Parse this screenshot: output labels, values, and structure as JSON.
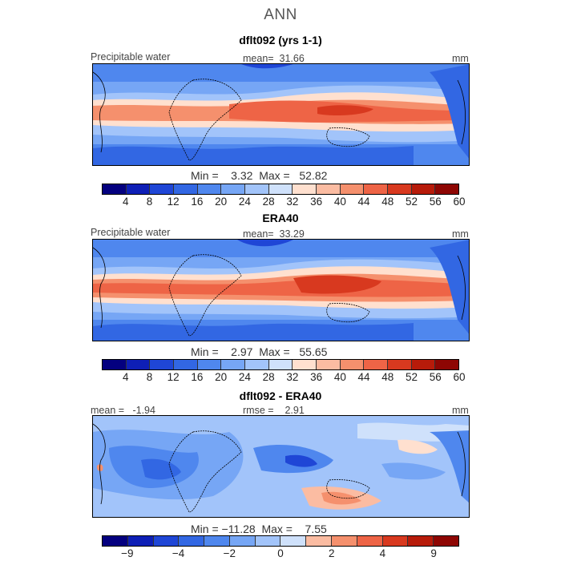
{
  "figure": {
    "suptitle": "ANN"
  },
  "chart_data": [
    {
      "type": "heatmap",
      "title": "dflt092 (yrs 1-1)",
      "left_label": "Precipitable water",
      "center_label": "mean=  31.66",
      "units": "mm",
      "min_max_text": "Min =    3.32  Max =   52.82",
      "min": 3.32,
      "max": 52.82,
      "mean": 31.66,
      "colorbar_ticks": [
        "4",
        "8",
        "12",
        "16",
        "20",
        "24",
        "28",
        "32",
        "36",
        "40",
        "44",
        "48",
        "52",
        "56",
        "60"
      ],
      "colorbar_colors": [
        "#04007f",
        "#0e1fb6",
        "#1f46d6",
        "#3267e3",
        "#4f87ee",
        "#76a6f5",
        "#a2c4fa",
        "#cfe1fb",
        "#ffe0cf",
        "#fbbca2",
        "#f5906d",
        "#ee6446",
        "#d8391f",
        "#b71b0a",
        "#8e0603"
      ]
    },
    {
      "type": "heatmap",
      "title": "ERA40",
      "left_label": "Precipitable water",
      "center_label": "mean=  33.29",
      "units": "mm",
      "min_max_text": "Min =    2.97  Max =   55.65",
      "min": 2.97,
      "max": 55.65,
      "mean": 33.29,
      "colorbar_ticks": [
        "4",
        "8",
        "12",
        "16",
        "20",
        "24",
        "28",
        "32",
        "36",
        "40",
        "44",
        "48",
        "52",
        "56",
        "60"
      ],
      "colorbar_colors": [
        "#04007f",
        "#0e1fb6",
        "#1f46d6",
        "#3267e3",
        "#4f87ee",
        "#76a6f5",
        "#a2c4fa",
        "#cfe1fb",
        "#ffe0cf",
        "#fbbca2",
        "#f5906d",
        "#ee6446",
        "#d8391f",
        "#b71b0a",
        "#8e0603"
      ]
    },
    {
      "type": "heatmap",
      "title": "dflt092 - ERA40",
      "left_label": "mean =   -1.94",
      "center_label": "rmse =    2.91",
      "units": "mm",
      "min_max_text": "Min = −11.28  Max =    7.55",
      "min": -11.28,
      "max": 7.55,
      "mean": -1.94,
      "rmse": 2.91,
      "colorbar_ticks": [
        "−9",
        "",
        "−4",
        "",
        "−2",
        "",
        "0",
        "",
        "2",
        "",
        "4",
        "",
        "9",
        ""
      ],
      "colorbar_colors": [
        "#04007f",
        "#0e1fb6",
        "#1f46d6",
        "#3267e3",
        "#4f87ee",
        "#76a6f5",
        "#a2c4fa",
        "#cfe1fb",
        "#fbbca2",
        "#f5906d",
        "#ee6446",
        "#d8391f",
        "#b71b0a",
        "#8e0603"
      ]
    }
  ]
}
